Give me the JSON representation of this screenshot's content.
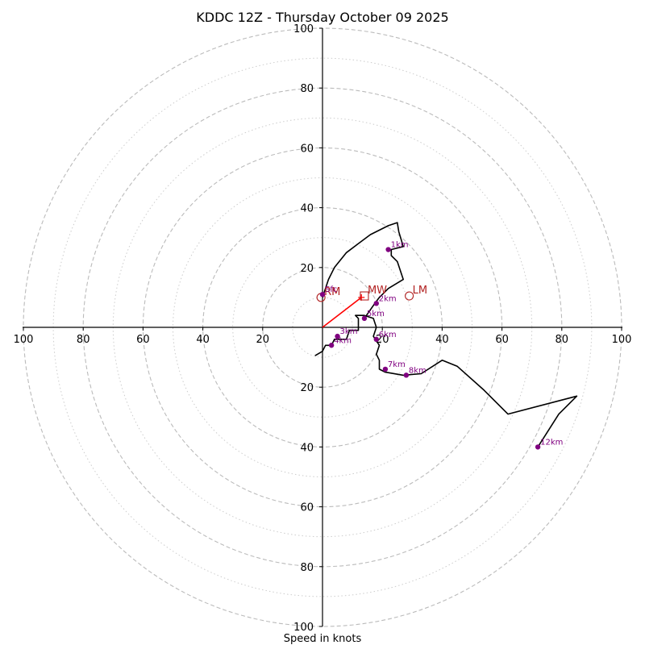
{
  "chart_data": {
    "type": "hodograph",
    "title": "KDDC 12Z - Thursday October 09 2025",
    "xlabel": "Speed in knots",
    "range": [
      -100,
      100
    ],
    "major_rings": [
      20,
      40,
      60,
      80,
      100
    ],
    "minor_rings": [
      10,
      30,
      50,
      70,
      90
    ],
    "ticks": {
      "left": [
        "100",
        "80",
        "60",
        "40",
        "20"
      ],
      "right": [
        "20",
        "40",
        "60",
        "80",
        "100"
      ],
      "top": [
        "100",
        "80",
        "60",
        "40",
        "20"
      ],
      "bottom": [
        "20",
        "40",
        "60",
        "80",
        "100"
      ]
    },
    "trace": [
      [
        -2.5,
        -9.5
      ],
      [
        0,
        -8
      ],
      [
        1,
        -6
      ],
      [
        3,
        -6
      ],
      [
        4,
        -4
      ],
      [
        8,
        -4
      ],
      [
        9,
        -1
      ],
      [
        12,
        -1
      ],
      [
        12,
        3
      ],
      [
        11,
        4
      ],
      [
        14,
        4
      ],
      [
        17,
        3
      ],
      [
        18,
        0
      ],
      [
        17,
        -3
      ],
      [
        19,
        -6
      ],
      [
        18,
        -9
      ],
      [
        19,
        -11
      ],
      [
        19,
        -14
      ],
      [
        21,
        -15
      ],
      [
        27,
        -16
      ],
      [
        33,
        -15.5
      ],
      [
        40,
        -11
      ],
      [
        45,
        -13
      ],
      [
        54,
        -21
      ],
      [
        62,
        -29
      ],
      [
        85,
        -23
      ],
      [
        79,
        -29
      ],
      [
        72,
        -40
      ]
    ],
    "trace_upper": [
      [
        0,
        10
      ],
      [
        2,
        16
      ],
      [
        4,
        20
      ],
      [
        8,
        25
      ],
      [
        12,
        28
      ],
      [
        16,
        31
      ],
      [
        22,
        34
      ],
      [
        25,
        35
      ],
      [
        25.5,
        32
      ],
      [
        27,
        27
      ],
      [
        23,
        26
      ],
      [
        23,
        24
      ],
      [
        25,
        22
      ],
      [
        26,
        19
      ],
      [
        27,
        16
      ],
      [
        22,
        13
      ],
      [
        19,
        10
      ],
      [
        17.5,
        8
      ],
      [
        14,
        3
      ]
    ],
    "height_markers": [
      {
        "label": "1km",
        "u": 22,
        "v": 26
      },
      {
        "label": "2km",
        "u": 18,
        "v": 8
      },
      {
        "label": "3km",
        "u": 5,
        "v": -3
      },
      {
        "label": "4km",
        "u": 3,
        "v": -6
      },
      {
        "label": "5km",
        "u": 14,
        "v": 3
      },
      {
        "label": "6km",
        "u": 18,
        "v": -4
      },
      {
        "label": "7km",
        "u": 21,
        "v": -14
      },
      {
        "label": "8km",
        "u": 28,
        "v": -16
      },
      {
        "label": "12km",
        "u": 72,
        "v": -40
      },
      {
        "label": "Sfc",
        "u": 0,
        "v": 11
      }
    ],
    "motion_vectors": [
      {
        "label": "RM",
        "u": -0.5,
        "v": 10,
        "marker": "circle"
      },
      {
        "label": "MW",
        "u": 14,
        "v": 10.5,
        "marker": "square"
      },
      {
        "label": "LM",
        "u": 29,
        "v": 10.5,
        "marker": "circle"
      }
    ],
    "shear_vector": {
      "from": [
        0,
        0
      ],
      "to": [
        13,
        10
      ]
    },
    "colors": {
      "trace": "#000000",
      "markers": "#800080",
      "motion": "#b22222",
      "shear": "#ff0000",
      "grid": "#bbbbbb"
    }
  }
}
